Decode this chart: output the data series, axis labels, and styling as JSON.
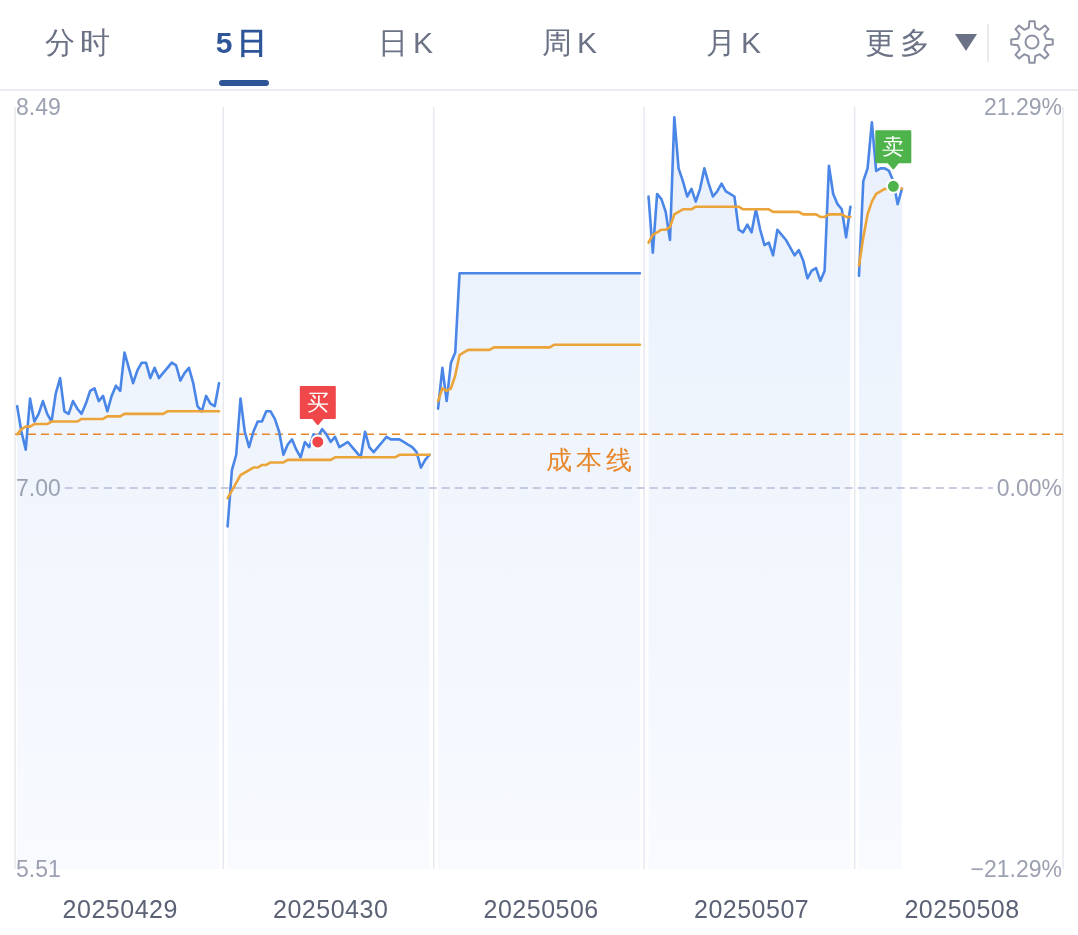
{
  "chart_data": {
    "type": "line",
    "annotations": [
      "分时",
      "5日",
      "日K",
      "周K",
      "月K",
      "更多"
    ],
    "categories": [
      null,
      null,
      null,
      null,
      null,
      null,
      null,
      null,
      null,
      null,
      null,
      null,
      null,
      null,
      null,
      null,
      null,
      null,
      null,
      null,
      null,
      null,
      null,
      null,
      "20250429",
      null,
      null,
      null,
      null,
      null,
      null,
      null,
      null,
      null,
      null,
      null,
      null,
      null,
      null,
      null,
      null,
      null,
      null,
      null,
      null,
      null,
      null,
      null,
      null,
      null,
      null,
      null,
      null,
      null,
      null,
      null,
      null,
      null,
      null,
      null,
      null,
      null,
      null,
      null,
      null,
      null,
      null,
      null,
      null,
      null,
      null,
      null,
      null,
      "20250430",
      null,
      null,
      null,
      null,
      null,
      null,
      null,
      null,
      null,
      null,
      null,
      null,
      null,
      null,
      null,
      null,
      null,
      null,
      null,
      null,
      null,
      null,
      null,
      null,
      null,
      null,
      null,
      null,
      null,
      null,
      null,
      null,
      null,
      null,
      null,
      null,
      null,
      null,
      null,
      null,
      null,
      null,
      null,
      null,
      null,
      null,
      null,
      null,
      "20250506",
      null,
      null,
      null,
      null,
      null,
      null,
      null,
      null,
      null,
      null,
      null,
      null,
      null,
      null,
      null,
      null,
      null,
      null,
      null,
      null,
      null,
      null,
      null,
      null,
      null,
      null,
      null,
      null,
      null,
      null,
      null,
      null,
      null,
      null,
      null,
      null,
      null,
      null,
      null,
      null,
      null,
      null,
      null,
      null,
      null,
      null,
      null,
      null,
      "20250507",
      null,
      null,
      null,
      null,
      null,
      null,
      null,
      null,
      null,
      null,
      null,
      null,
      null,
      null,
      null,
      null,
      null,
      null,
      null,
      null,
      null,
      null,
      null,
      null,
      null,
      null,
      null,
      null,
      null,
      null,
      null,
      null,
      null,
      null,
      null,
      null,
      null,
      null,
      null,
      null,
      null,
      null,
      null,
      null,
      null,
      null,
      null,
      null,
      "20250508",
      null,
      null,
      null,
      null,
      null,
      null,
      null,
      null,
      null,
      null,
      null,
      null,
      null,
      null,
      null,
      null,
      null,
      null,
      null,
      null,
      null,
      null,
      null
    ],
    "ylim": [
      5.51,
      8.49
    ],
    "yticks": [
      5.51,
      {
        "value": 7.0,
        "label": "7.00"
      },
      8.49
    ],
    "y2lim": [
      -21.29,
      21.29
    ],
    "y2ticks": [
      {
        "value": -21.29,
        "label": "−21.29%"
      },
      {
        "value": 0,
        "label": "0.00%"
      },
      {
        "value": 21.29,
        "label": "21.29%"
      }
    ],
    "ref_lines": [
      {
        "axis": "y",
        "value": 7.0,
        "color": "#b8bcd8",
        "line_style": "dashed"
      },
      {
        "axis": "y",
        "value": 7.21,
        "label": "成本线",
        "color": "#e8862a",
        "line_style": "dashed"
      }
    ],
    "series": [
      {
        "type": "area",
        "color": "#4a86e8",
        "values": [
          7.32,
          7.22,
          7.15,
          7.35,
          7.26,
          7.29,
          7.34,
          7.29,
          7.26,
          7.37,
          7.43,
          7.3,
          7.29,
          7.34,
          7.31,
          7.29,
          7.33,
          7.38,
          7.39,
          7.34,
          7.36,
          7.3,
          7.36,
          7.4,
          7.38,
          7.53,
          7.47,
          7.41,
          7.46,
          7.49,
          7.49,
          7.43,
          7.47,
          7.43,
          7.45,
          7.47,
          7.49,
          7.48,
          7.42,
          7.45,
          7.47,
          7.41,
          7.32,
          7.3,
          7.36,
          7.33,
          7.32,
          7.41,
          null,
          6.85,
          7.07,
          7.13,
          7.35,
          7.22,
          7.16,
          7.22,
          7.26,
          7.26,
          7.3,
          7.3,
          7.27,
          7.22,
          7.13,
          7.17,
          7.19,
          7.15,
          7.12,
          7.18,
          7.16,
          7.21,
          7.2,
          7.23,
          7.21,
          7.18,
          7.2,
          7.16,
          7.17,
          7.18,
          7.16,
          7.14,
          7.12,
          7.22,
          7.16,
          7.14,
          7.16,
          7.18,
          7.2,
          7.19,
          7.19,
          7.19,
          7.18,
          7.17,
          7.16,
          7.14,
          7.08,
          7.11,
          7.13,
          null,
          7.31,
          7.47,
          7.34,
          7.49,
          7.53,
          7.84,
          7.84,
          7.84,
          7.84,
          7.84,
          7.84,
          7.84,
          7.84,
          7.84,
          7.84,
          7.84,
          7.84,
          7.84,
          7.84,
          7.84,
          7.84,
          7.84,
          7.84,
          7.84,
          7.84,
          7.84,
          7.84,
          7.84,
          7.84,
          7.84,
          7.84,
          7.84,
          7.84,
          7.84,
          7.84,
          7.84,
          7.84,
          7.84,
          7.84,
          7.84,
          7.84,
          7.84,
          7.84,
          7.84,
          7.84,
          7.84,
          7.84,
          7.84,
          null,
          8.14,
          7.92,
          8.15,
          8.13,
          8.08,
          7.97,
          8.45,
          8.25,
          8.2,
          8.14,
          8.17,
          8.12,
          8.17,
          8.25,
          8.19,
          8.14,
          8.16,
          8.19,
          8.16,
          8.15,
          8.14,
          8.01,
          8.0,
          8.03,
          8.0,
          8.09,
          8.01,
          7.95,
          7.96,
          7.91,
          8.01,
          7.99,
          7.97,
          7.94,
          7.91,
          7.93,
          7.89,
          7.82,
          7.85,
          7.86,
          7.81,
          7.85,
          8.26,
          8.15,
          8.11,
          8.09,
          7.98,
          8.1,
          null,
          7.83,
          8.2,
          8.25,
          8.43,
          8.24,
          8.25,
          8.25,
          8.24,
          8.2,
          8.11,
          8.17,
          null,
          null,
          null,
          null,
          null,
          null,
          null,
          null,
          null,
          null,
          null,
          null,
          null,
          null,
          null,
          null,
          null,
          null,
          null,
          null,
          null,
          null,
          null,
          null,
          null,
          null,
          null,
          null,
          null,
          null,
          null,
          null,
          null,
          null,
          null,
          null,
          null
        ]
      },
      {
        "color": "#eba43a",
        "values": [
          7.21,
          7.23,
          7.24,
          7.24,
          7.25,
          7.25,
          7.25,
          7.25,
          7.26,
          7.26,
          7.26,
          7.26,
          7.26,
          7.26,
          7.26,
          7.27,
          7.27,
          7.27,
          7.27,
          7.27,
          7.27,
          7.28,
          7.28,
          7.28,
          7.28,
          7.29,
          7.29,
          7.29,
          7.29,
          7.29,
          7.29,
          7.29,
          7.29,
          7.29,
          7.29,
          7.3,
          7.3,
          7.3,
          7.3,
          7.3,
          7.3,
          7.3,
          7.3,
          7.3,
          7.3,
          7.3,
          7.3,
          7.3,
          null,
          6.96,
          6.99,
          7.02,
          7.05,
          7.06,
          7.07,
          7.08,
          7.08,
          7.09,
          7.09,
          7.1,
          7.1,
          7.1,
          7.1,
          7.11,
          7.11,
          7.11,
          7.11,
          7.11,
          7.11,
          7.11,
          7.11,
          7.11,
          7.11,
          7.11,
          7.12,
          7.12,
          7.12,
          7.12,
          7.12,
          7.12,
          7.12,
          7.12,
          7.12,
          7.12,
          7.12,
          7.12,
          7.12,
          7.12,
          7.12,
          7.13,
          7.13,
          7.13,
          7.13,
          7.13,
          7.13,
          7.13,
          7.13,
          null,
          7.34,
          7.39,
          7.38,
          7.39,
          7.44,
          7.52,
          7.53,
          7.54,
          7.54,
          7.54,
          7.54,
          7.54,
          7.54,
          7.55,
          7.55,
          7.55,
          7.55,
          7.55,
          7.55,
          7.55,
          7.55,
          7.55,
          7.55,
          7.55,
          7.55,
          7.55,
          7.55,
          7.56,
          7.56,
          7.56,
          7.56,
          7.56,
          7.56,
          7.56,
          7.56,
          7.56,
          7.56,
          7.56,
          7.56,
          7.56,
          7.56,
          7.56,
          7.56,
          7.56,
          7.56,
          7.56,
          7.56,
          7.56,
          null,
          7.96,
          7.99,
          8.0,
          8.01,
          8.01,
          8.02,
          8.07,
          8.08,
          8.09,
          8.09,
          8.09,
          8.1,
          8.1,
          8.1,
          8.1,
          8.1,
          8.1,
          8.1,
          8.1,
          8.1,
          8.1,
          8.1,
          8.09,
          8.09,
          8.09,
          8.09,
          8.09,
          8.09,
          8.09,
          8.08,
          8.08,
          8.08,
          8.08,
          8.08,
          8.08,
          8.08,
          8.07,
          8.07,
          8.07,
          8.07,
          8.06,
          8.06,
          8.07,
          8.07,
          8.07,
          8.07,
          8.06,
          8.06,
          null,
          7.87,
          7.98,
          8.07,
          8.12,
          8.15,
          8.16,
          8.17,
          8.17,
          8.18,
          8.18,
          8.17,
          null,
          null,
          null,
          null,
          null,
          null,
          null,
          null,
          null,
          null,
          null,
          null,
          null,
          null,
          null,
          null,
          null,
          null,
          null,
          null,
          null,
          null,
          null,
          null,
          null,
          null,
          null,
          null,
          null,
          null,
          null,
          null,
          null,
          null,
          null,
          null,
          null
        ]
      },
      {
        "type": "scatter",
        "name": "买",
        "color": "#f0484a",
        "marker": "circle",
        "values": [
          null,
          null,
          null,
          null,
          null,
          null,
          null,
          null,
          null,
          null,
          null,
          null,
          null,
          null,
          null,
          null,
          null,
          null,
          null,
          null,
          null,
          null,
          null,
          null,
          null,
          null,
          null,
          null,
          null,
          null,
          null,
          null,
          null,
          null,
          null,
          null,
          null,
          null,
          null,
          null,
          null,
          null,
          null,
          null,
          null,
          null,
          null,
          null,
          null,
          null,
          null,
          null,
          null,
          null,
          null,
          null,
          null,
          null,
          null,
          null,
          null,
          null,
          null,
          null,
          null,
          null,
          null,
          null,
          null,
          null,
          7.18,
          null,
          null,
          null,
          null,
          null,
          null,
          null,
          null,
          null,
          null,
          null,
          null,
          null,
          null,
          null,
          null,
          null,
          null,
          null,
          null,
          null,
          null,
          null,
          null,
          null,
          null,
          null,
          null,
          null,
          null,
          null,
          null,
          null,
          null,
          null,
          null,
          null,
          null,
          null,
          null,
          null,
          null,
          null,
          null,
          null,
          null,
          null,
          null,
          null,
          null,
          null,
          null,
          null,
          null,
          null,
          null,
          null,
          null,
          null,
          null,
          null,
          null,
          null,
          null,
          null,
          null,
          null,
          null,
          null,
          null,
          null,
          null,
          null,
          null,
          null,
          null,
          null,
          null,
          null,
          null,
          null,
          null,
          null,
          null,
          null,
          null,
          null,
          null,
          null,
          null,
          null,
          null,
          null,
          null,
          null,
          null,
          null,
          null,
          null,
          null,
          null,
          null,
          null,
          null,
          null,
          null,
          null,
          null,
          null,
          null,
          null,
          null,
          null,
          null,
          null,
          null,
          null,
          null,
          null,
          null,
          null,
          null,
          null,
          null,
          null,
          null,
          null,
          null,
          null,
          null,
          null,
          null,
          null,
          null,
          null,
          null,
          null,
          null,
          null,
          null,
          null,
          null,
          null,
          null,
          null,
          null,
          null,
          null,
          null,
          null,
          null,
          null,
          null,
          null,
          null,
          null,
          null,
          null,
          null,
          null,
          null,
          null,
          null,
          null,
          null,
          null,
          null,
          null,
          null,
          null,
          null,
          null,
          null
        ]
      },
      {
        "type": "scatter",
        "name": "卖",
        "color": "#4db34a",
        "marker": "circle",
        "values": [
          null,
          null,
          null,
          null,
          null,
          null,
          null,
          null,
          null,
          null,
          null,
          null,
          null,
          null,
          null,
          null,
          null,
          null,
          null,
          null,
          null,
          null,
          null,
          null,
          null,
          null,
          null,
          null,
          null,
          null,
          null,
          null,
          null,
          null,
          null,
          null,
          null,
          null,
          null,
          null,
          null,
          null,
          null,
          null,
          null,
          null,
          null,
          null,
          null,
          null,
          null,
          null,
          null,
          null,
          null,
          null,
          null,
          null,
          null,
          null,
          null,
          null,
          null,
          null,
          null,
          null,
          null,
          null,
          null,
          null,
          null,
          null,
          null,
          null,
          null,
          null,
          null,
          null,
          null,
          null,
          null,
          null,
          null,
          null,
          null,
          null,
          null,
          null,
          null,
          null,
          null,
          null,
          null,
          null,
          null,
          null,
          null,
          null,
          null,
          null,
          null,
          null,
          null,
          null,
          null,
          null,
          null,
          null,
          null,
          null,
          null,
          null,
          null,
          null,
          null,
          null,
          null,
          null,
          null,
          null,
          null,
          null,
          null,
          null,
          null,
          null,
          null,
          null,
          null,
          null,
          null,
          null,
          null,
          null,
          null,
          null,
          null,
          null,
          null,
          null,
          null,
          null,
          null,
          null,
          null,
          null,
          null,
          null,
          null,
          null,
          null,
          null,
          null,
          null,
          null,
          null,
          null,
          null,
          null,
          null,
          null,
          null,
          null,
          null,
          null,
          null,
          null,
          null,
          null,
          null,
          null,
          null,
          null,
          null,
          null,
          null,
          null,
          null,
          null,
          null,
          null,
          null,
          null,
          null,
          null,
          null,
          null,
          null,
          null,
          null,
          null,
          null,
          null,
          null,
          null,
          null,
          null,
          null,
          null,
          null,
          null,
          null,
          null,
          null,
          8.18,
          null,
          null,
          null,
          null,
          null,
          null,
          null,
          null,
          null,
          null,
          null,
          null,
          null,
          null,
          null,
          null,
          null,
          null,
          null,
          null,
          null,
          null,
          null,
          null,
          null,
          null,
          null,
          null,
          null,
          null,
          null,
          null,
          null,
          null,
          null,
          null,
          null,
          null,
          null
        ]
      }
    ]
  }
}
